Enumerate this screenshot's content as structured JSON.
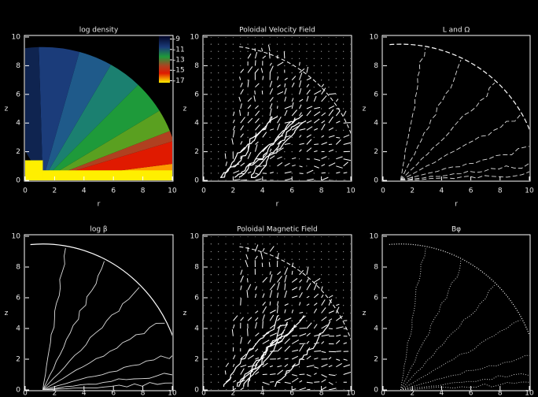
{
  "chart_data": [
    {
      "type": "heatmap",
      "title": "log density",
      "xlabel": "r",
      "ylabel": "z",
      "xlim": [
        0,
        10
      ],
      "ylim": [
        0,
        10
      ],
      "xticks": [
        0,
        2,
        4,
        6,
        8,
        10
      ],
      "yticks": [
        0,
        2,
        4,
        6,
        8,
        10
      ],
      "clim": [
        -17.4,
        -8.3
      ],
      "cticks": [
        -17,
        -15,
        -13,
        -11,
        -9
      ]
    },
    {
      "type": "vector",
      "title": "Poloidal Velocity Field",
      "xlabel": "r",
      "ylabel": "z",
      "xlim": [
        0,
        10
      ],
      "ylim": [
        0,
        10
      ],
      "xticks": [
        0,
        2,
        4,
        6,
        8,
        10
      ],
      "yticks": [
        0,
        2,
        4,
        6,
        8,
        10
      ]
    },
    {
      "type": "contour",
      "title": "L and Ω",
      "xlabel": "r",
      "ylabel": "z",
      "xlim": [
        0,
        10
      ],
      "ylim": [
        0,
        10
      ],
      "xticks": [
        0,
        2,
        4,
        6,
        8,
        10
      ],
      "yticks": [
        0,
        2,
        4,
        6,
        8,
        10
      ]
    },
    {
      "type": "contour",
      "title": "log β",
      "ylabel": "z",
      "xlim": [
        0,
        10
      ],
      "ylim": [
        0,
        10
      ],
      "xticks": [
        0,
        2,
        4,
        6,
        8,
        10
      ],
      "yticks": [
        0,
        2,
        4,
        6,
        8,
        10
      ]
    },
    {
      "type": "vector",
      "title": "Poloidal Magnetic Field",
      "ylabel": "z",
      "xlim": [
        0,
        10
      ],
      "ylim": [
        0,
        10
      ],
      "xticks": [
        0,
        2,
        4,
        6,
        8,
        10
      ],
      "yticks": [
        0,
        2,
        4,
        6,
        8,
        10
      ]
    },
    {
      "type": "contour",
      "title": "Bφ",
      "ylabel": "z",
      "xlim": [
        0,
        10
      ],
      "ylim": [
        0,
        10
      ],
      "xticks": [
        0,
        2,
        4,
        6,
        8,
        10
      ],
      "yticks": [
        0,
        2,
        4,
        6,
        8,
        10
      ]
    }
  ]
}
